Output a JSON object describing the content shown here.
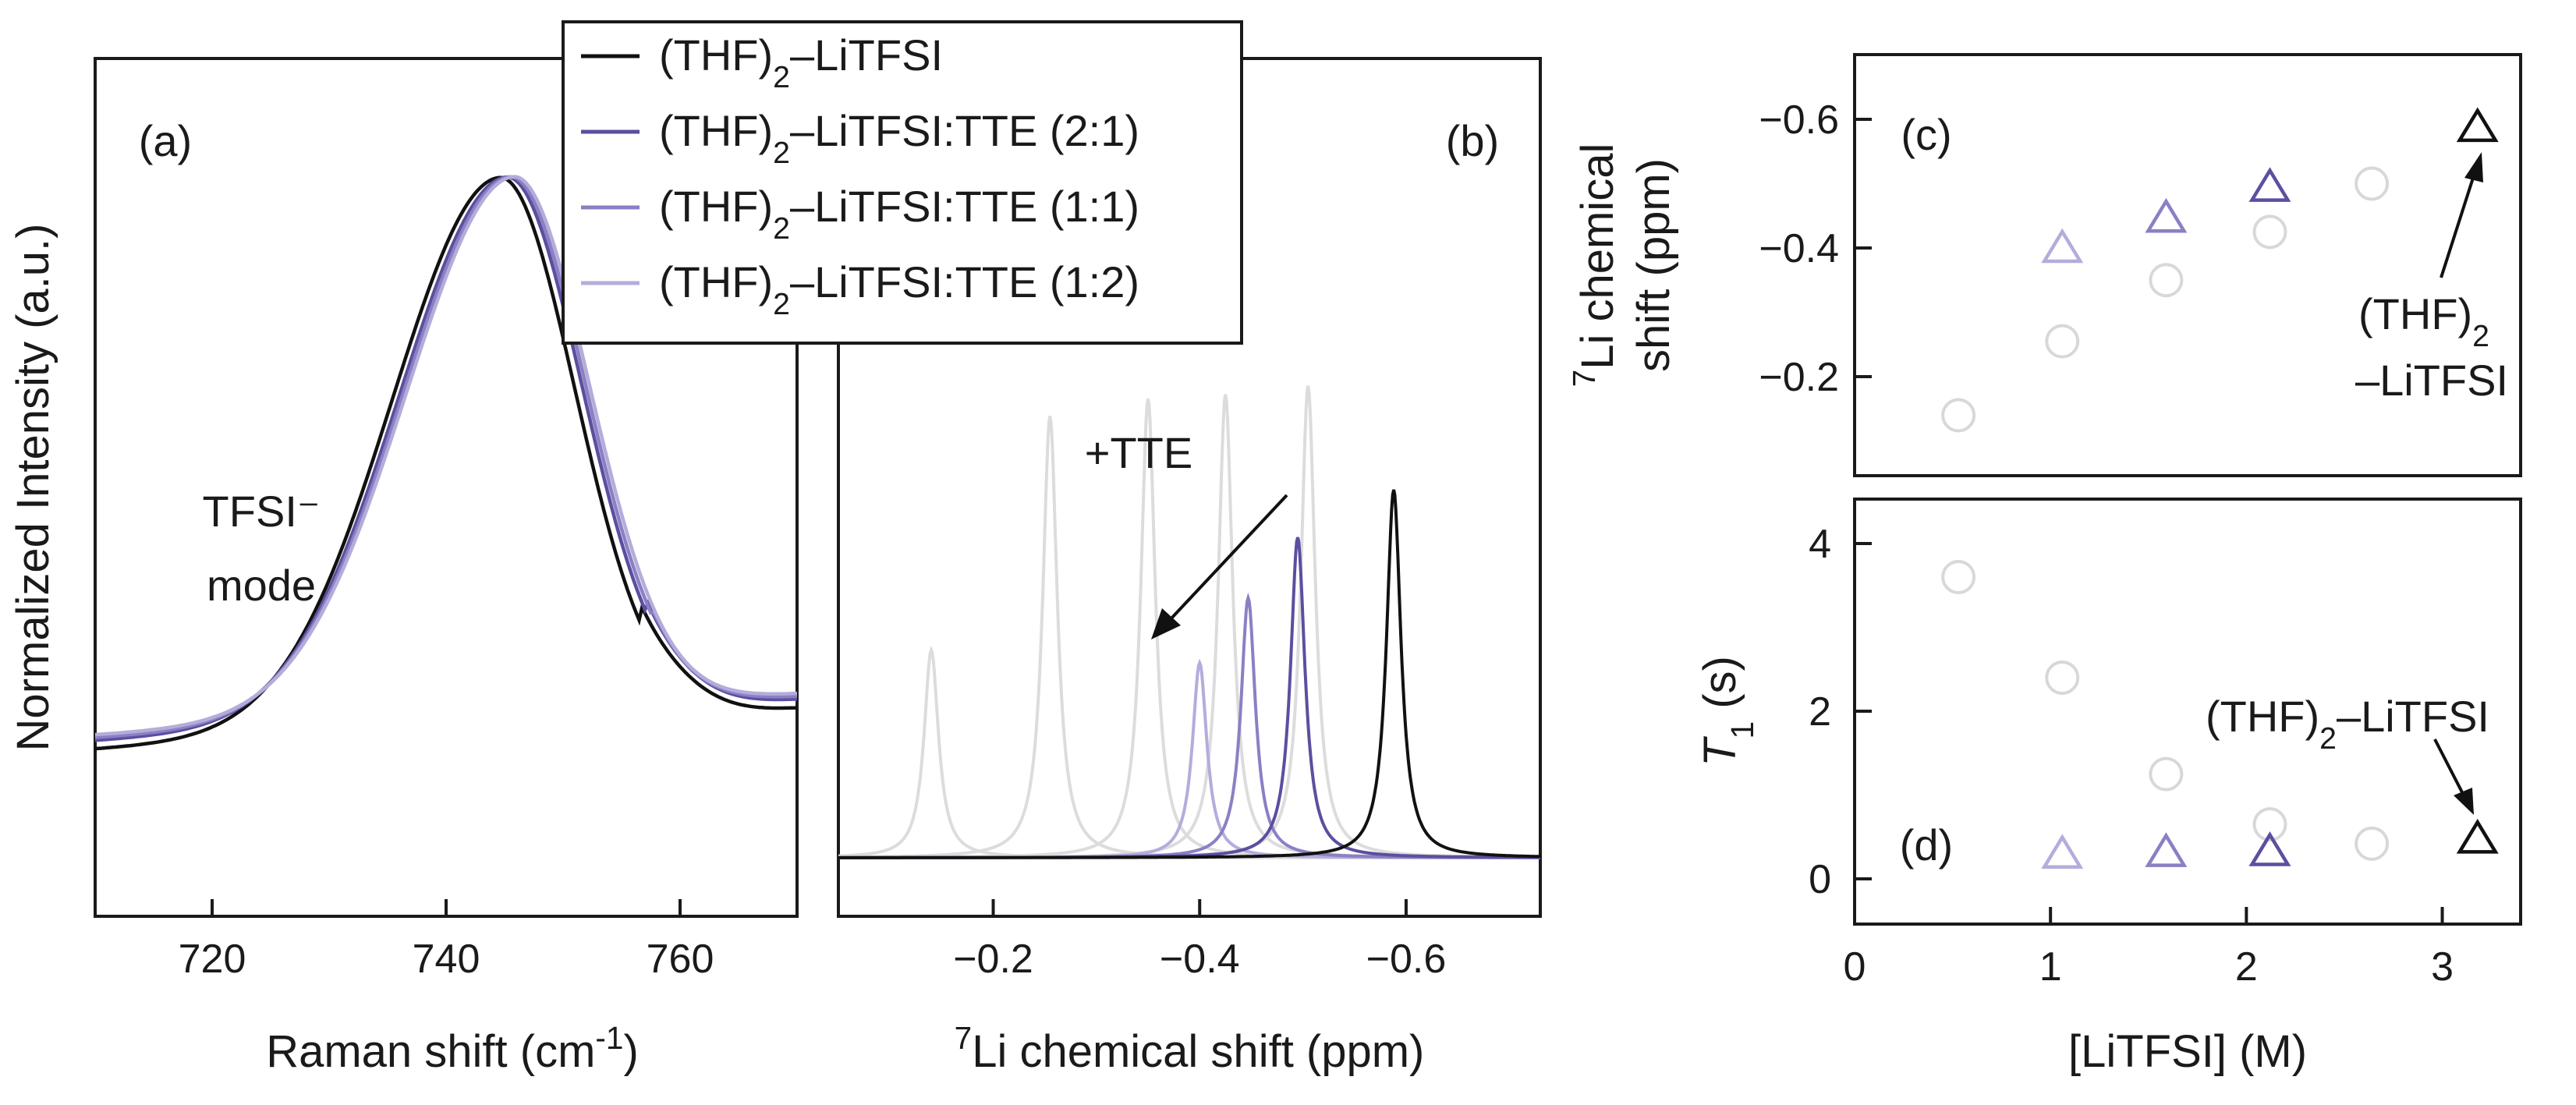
{
  "chart_data": [
    {
      "panel": "(a)",
      "type": "line",
      "xlabel": "Raman shift (cm-1)",
      "ylabel": "Normalized Intensity (a.u.)",
      "xlim": [
        710,
        770
      ],
      "xticks": [
        720,
        740,
        760
      ],
      "annotation": "TFSI⁻ mode",
      "annotation_lines": [
        "TFSI⁻",
        "mode"
      ],
      "series": [
        {
          "name": "(THF)2–LiTFSI",
          "color": "#111111",
          "peak": 744.6,
          "height": 1.0,
          "baseline": 0.04
        },
        {
          "name": "(THF)2–LiTFSI:TTE (2:1)",
          "color": "#5b4fa0",
          "peak": 745.2,
          "height": 1.0,
          "baseline": 0.055
        },
        {
          "name": "(THF)2–LiTFSI:TTE (1:1)",
          "color": "#8a80c4",
          "peak": 745.5,
          "height": 1.0,
          "baseline": 0.06
        },
        {
          "name": "(THF)2–LiTFSI:TTE (1:2)",
          "color": "#b3addb",
          "peak": 745.8,
          "height": 1.0,
          "baseline": 0.065
        }
      ]
    },
    {
      "panel": "(b)",
      "type": "line",
      "xlabel": "7Li chemical shift (ppm)",
      "xlim": [
        -0.05,
        -0.73
      ],
      "xticks": [
        -0.2,
        -0.4,
        -0.6
      ],
      "xticklabels": [
        "−0.2",
        "−0.4",
        "−0.6"
      ],
      "annotation": "+TTE",
      "series": [
        {
          "name": "(THF)2–LiTFSI",
          "color": "#111111",
          "peak": -0.588,
          "height": 0.85
        },
        {
          "name": "(THF)2–LiTFSI:TTE (2:1)",
          "color": "#5b4fa0",
          "peak": -0.495,
          "height": 0.74
        },
        {
          "name": "(THF)2–LiTFSI:TTE (1:1)",
          "color": "#8a80c4",
          "peak": -0.447,
          "height": 0.6
        },
        {
          "name": "(THF)2–LiTFSI:TTE (1:2)",
          "color": "#b3addb",
          "peak": -0.4,
          "height": 0.45
        },
        {
          "name": "",
          "color": "#dcdcdc",
          "peak": -0.14,
          "height": 0.48
        },
        {
          "name": "",
          "color": "#dcdcdc",
          "peak": -0.255,
          "height": 1.02
        },
        {
          "name": "",
          "color": "#dcdcdc",
          "peak": -0.35,
          "height": 1.06
        },
        {
          "name": "",
          "color": "#dcdcdc",
          "peak": -0.425,
          "height": 1.07
        },
        {
          "name": "",
          "color": "#dcdcdc",
          "peak": -0.505,
          "height": 1.09
        }
      ]
    },
    {
      "panel": "(c)",
      "type": "scatter",
      "xlabel": "[LiTFSI] (M)",
      "ylabel": "7Li chemical shift (ppm)",
      "ylim": [
        -0.05,
        -0.7
      ],
      "yticks": [
        -0.2,
        -0.4,
        -0.6
      ],
      "yticklabels": [
        "−0.2",
        "−0.4",
        "−0.6"
      ],
      "annotation_lines": [
        "(THF)2",
        "–LiTFSI"
      ],
      "series": [
        {
          "name": "circles",
          "marker": "circle",
          "color": "#d8d8d8",
          "x": [
            0.53,
            1.06,
            1.59,
            2.12,
            2.64
          ],
          "y": [
            -0.14,
            -0.255,
            -0.35,
            -0.425,
            -0.5
          ]
        },
        {
          "name": "triangles",
          "marker": "triangle",
          "x": [
            1.06,
            1.59,
            2.12,
            3.18
          ],
          "y": [
            -0.4,
            -0.447,
            -0.495,
            -0.588
          ],
          "colors": [
            "#b3addb",
            "#8a80c4",
            "#5b4fa0",
            "#111111"
          ]
        }
      ]
    },
    {
      "panel": "(d)",
      "type": "scatter",
      "xlabel": "[LiTFSI] (M)",
      "ylabel": "T1 (s)",
      "xlim": [
        0,
        3.4
      ],
      "xticks": [
        0,
        1,
        2,
        3
      ],
      "ylim": [
        -0.6,
        4.5
      ],
      "yticks": [
        0,
        2,
        4
      ],
      "annotation": "(THF)2–LiTFSI",
      "series": [
        {
          "name": "circles",
          "marker": "circle",
          "color": "#d8d8d8",
          "x": [
            0.53,
            1.06,
            1.59,
            2.12,
            2.64
          ],
          "y": [
            3.6,
            2.4,
            1.25,
            0.65,
            0.42
          ]
        },
        {
          "name": "triangles",
          "marker": "triangle",
          "x": [
            1.06,
            1.59,
            2.12,
            3.18
          ],
          "y": [
            0.3,
            0.32,
            0.33,
            0.48
          ],
          "colors": [
            "#b3addb",
            "#8a80c4",
            "#5b4fa0",
            "#111111"
          ]
        }
      ]
    }
  ],
  "legend": [
    {
      "label": "(THF)2–LiTFSI",
      "color": "#111111"
    },
    {
      "label": "(THF)2–LiTFSI:TTE (2:1)",
      "color": "#5b4fa0"
    },
    {
      "label": "(THF)2–LiTFSI:TTE (1:1)",
      "color": "#8a80c4"
    },
    {
      "label": "(THF)2–LiTFSI:TTE (1:2)",
      "color": "#b3addb"
    }
  ]
}
